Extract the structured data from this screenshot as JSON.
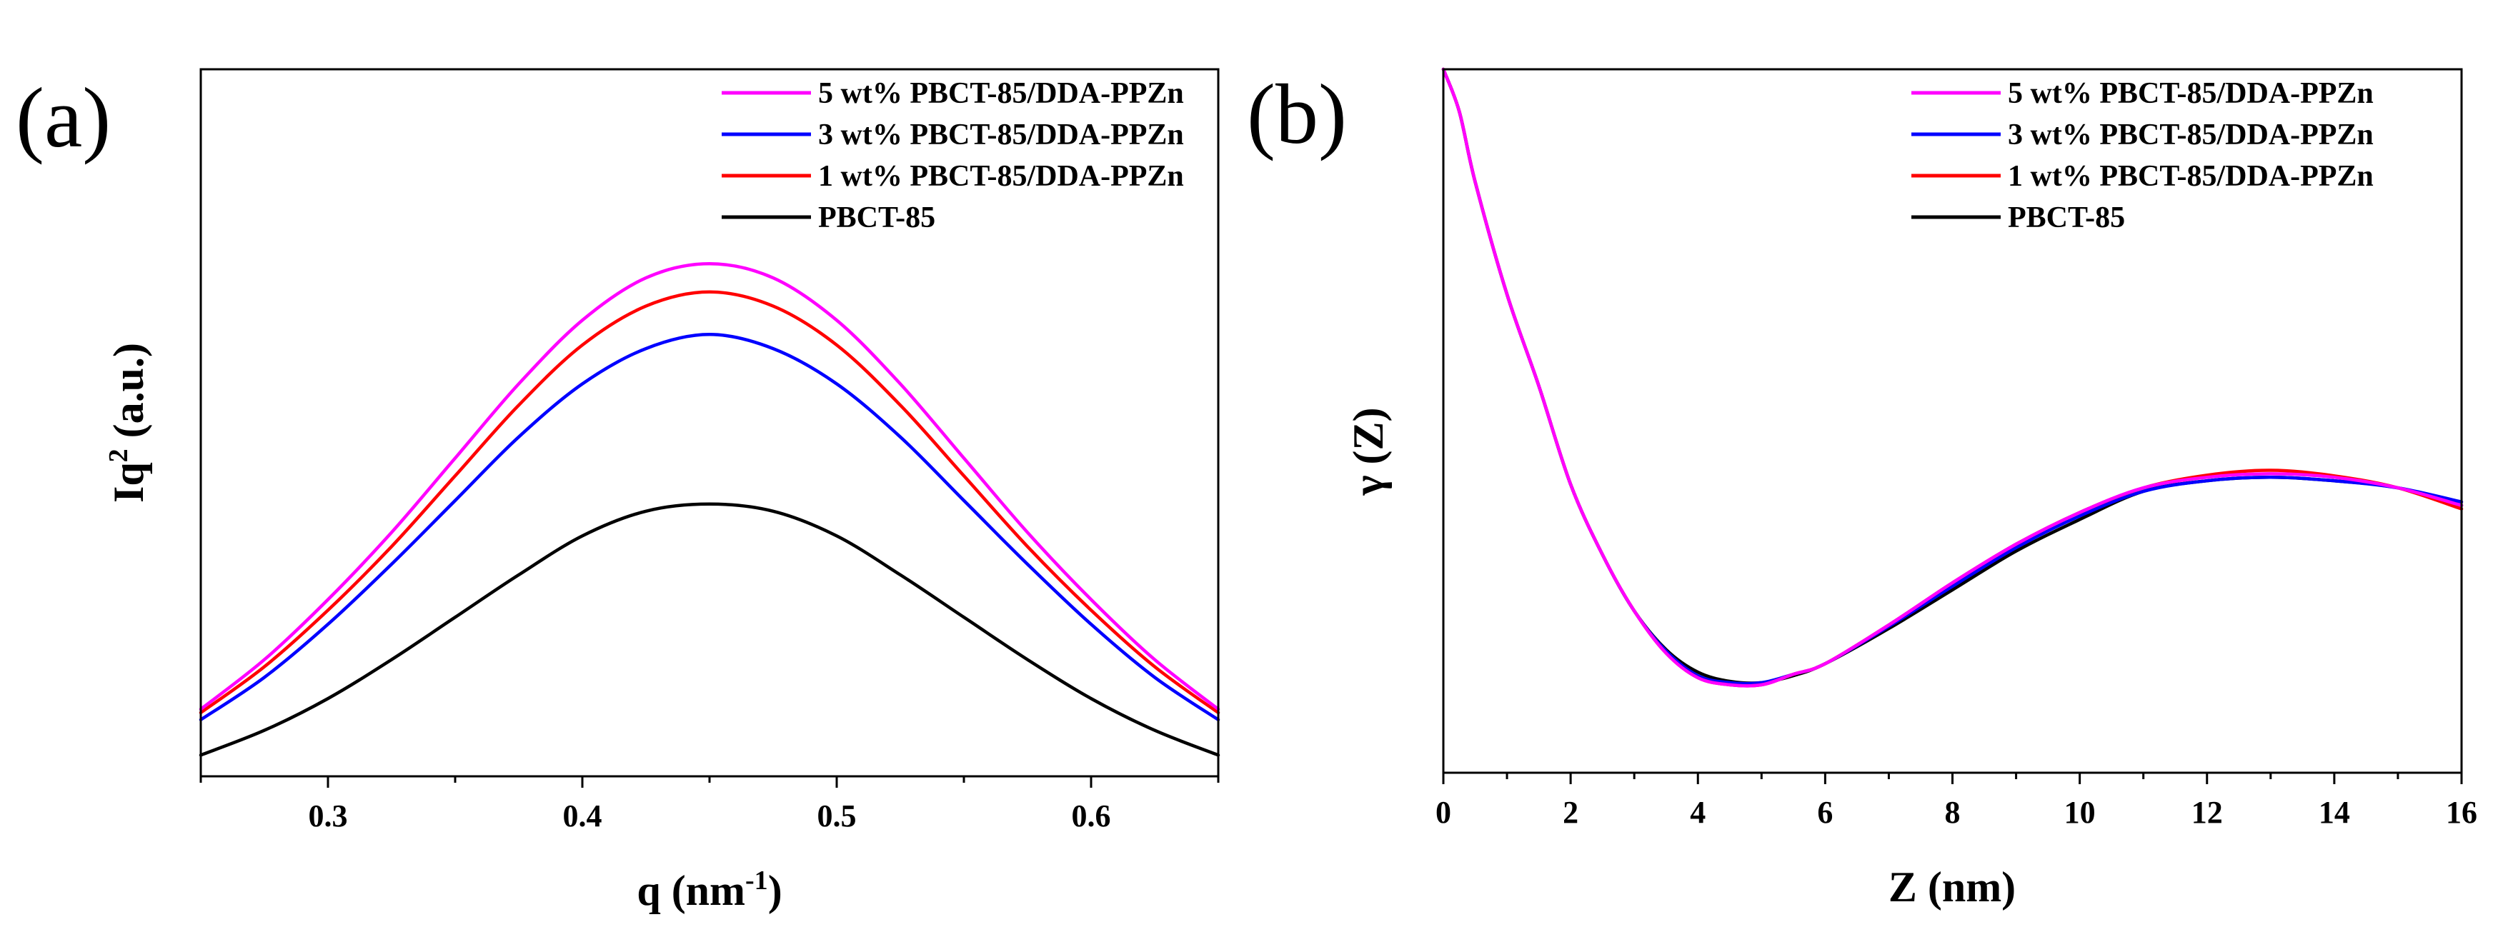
{
  "chart_data": [
    {
      "type": "line",
      "panel_label": "(a)",
      "xlabel": "q (nm",
      "xlabel_sup": "-1",
      "xlabel_end": ")",
      "ylabel": "Iq",
      "ylabel_sup": "2",
      "ylabel_end": " (a.u.)",
      "xlim": [
        0.25,
        0.65
      ],
      "ylim": [
        0,
        100
      ],
      "xticks": [
        0.3,
        0.4,
        0.5,
        0.6
      ],
      "xtick_labels": [
        "0.3",
        "0.4",
        "0.5",
        "0.6"
      ],
      "minor_xticks": [
        0.25,
        0.35,
        0.45,
        0.55,
        0.65
      ],
      "y_ticks_visible": false,
      "legend_position": "top-right",
      "series": [
        {
          "name": "5 wt% PBCT-85/DDA-PPZn",
          "color": "#ff00ff",
          "x": [
            0.25,
            0.275,
            0.3,
            0.325,
            0.35,
            0.375,
            0.4,
            0.425,
            0.45,
            0.475,
            0.5,
            0.525,
            0.55,
            0.575,
            0.6,
            0.625,
            0.65
          ],
          "y": [
            9.5,
            16.5,
            25,
            34.5,
            45,
            55.5,
            64.5,
            70.5,
            72.5,
            70.5,
            64.5,
            55.5,
            45,
            34.5,
            25,
            16.5,
            9.5
          ]
        },
        {
          "name": "3 wt% PBCT-85/DDA-PPZn",
          "color": "#0000ff",
          "x": [
            0.25,
            0.275,
            0.3,
            0.325,
            0.35,
            0.375,
            0.4,
            0.425,
            0.45,
            0.475,
            0.5,
            0.525,
            0.55,
            0.575,
            0.6,
            0.625,
            0.65
          ],
          "y": [
            8,
            14,
            21.5,
            30,
            39,
            48,
            55.5,
            60.5,
            62.5,
            60.5,
            55.5,
            48,
            39,
            30,
            21.5,
            14,
            8
          ]
        },
        {
          "name": "1 wt% PBCT-85/DDA-PPZn",
          "color": "#ff0000",
          "x": [
            0.25,
            0.275,
            0.3,
            0.325,
            0.35,
            0.375,
            0.4,
            0.425,
            0.45,
            0.475,
            0.5,
            0.525,
            0.55,
            0.575,
            0.6,
            0.625,
            0.65
          ],
          "y": [
            9,
            15.5,
            23.5,
            32.5,
            42.5,
            52.5,
            61,
            66.5,
            68.5,
            66.5,
            61,
            52.5,
            42.5,
            32.5,
            23.5,
            15.5,
            9
          ]
        },
        {
          "name": "PBCT-85",
          "color": "#000000",
          "x": [
            0.25,
            0.275,
            0.3,
            0.325,
            0.35,
            0.375,
            0.4,
            0.425,
            0.45,
            0.475,
            0.5,
            0.525,
            0.55,
            0.575,
            0.6,
            0.625,
            0.65
          ],
          "y": [
            3,
            6.5,
            11,
            16.5,
            22.5,
            28.5,
            34,
            37.5,
            38.5,
            37.5,
            34,
            28.5,
            22.5,
            16.5,
            11,
            6.5,
            3
          ]
        }
      ]
    },
    {
      "type": "line",
      "panel_label": "(b)",
      "xlabel": "Z (nm)",
      "ylabel": "γ (Z)",
      "xlim": [
        0,
        16
      ],
      "ylim": [
        0,
        100
      ],
      "xticks": [
        0,
        2,
        4,
        6,
        8,
        10,
        12,
        14,
        16
      ],
      "xtick_labels": [
        "0",
        "2",
        "4",
        "6",
        "8",
        "10",
        "12",
        "14",
        "16"
      ],
      "minor_xticks": [
        1,
        3,
        5,
        7,
        9,
        11,
        13,
        15
      ],
      "y_ticks_visible": false,
      "legend_position": "top-right",
      "series": [
        {
          "name": "5 wt% PBCT-85/DDA-PPZn",
          "color": "#ff00ff",
          "x": [
            0,
            0.25,
            0.5,
            1,
            1.5,
            2,
            2.5,
            3,
            3.5,
            4,
            4.5,
            5,
            5.5,
            6,
            7,
            8,
            9,
            10,
            11,
            12,
            13,
            14,
            15,
            16
          ],
          "y": [
            100,
            94,
            84,
            68,
            55,
            41,
            31,
            23,
            17,
            13.5,
            12.5,
            12.5,
            14,
            15.5,
            21,
            27,
            32.5,
            37,
            40.5,
            42,
            42.5,
            42,
            40.5,
            38
          ]
        },
        {
          "name": "3 wt% PBCT-85/DDA-PPZn",
          "color": "#0000ff",
          "x": [
            0,
            0.25,
            0.5,
            1,
            1.5,
            2,
            2.5,
            3,
            3.5,
            4,
            4.5,
            5,
            5.5,
            6,
            7,
            8,
            9,
            10,
            11,
            12,
            13,
            14,
            15,
            16
          ],
          "y": [
            100,
            94,
            84,
            68,
            55,
            41,
            31,
            23,
            17.3,
            13.8,
            12.8,
            12.8,
            14,
            15.5,
            20.8,
            26.5,
            32,
            36.5,
            40,
            41.5,
            42,
            41.5,
            40.5,
            38.5
          ]
        },
        {
          "name": "1 wt% PBCT-85/DDA-PPZn",
          "color": "#ff0000",
          "x": [
            0,
            0.25,
            0.5,
            1,
            1.5,
            2,
            2.5,
            3,
            3.5,
            4,
            4.5,
            5,
            5.5,
            6,
            7,
            8,
            9,
            10,
            11,
            12,
            13,
            14,
            15,
            16
          ],
          "y": [
            100,
            94,
            84,
            68,
            55,
            41,
            31,
            23,
            17,
            13.5,
            12.5,
            12.5,
            14,
            15.5,
            21,
            27,
            32.5,
            37,
            40.5,
            42.3,
            43,
            42.2,
            40.5,
            37.5
          ]
        },
        {
          "name": "PBCT-85",
          "color": "#000000",
          "x": [
            0,
            0.25,
            0.5,
            1,
            1.5,
            2,
            2.5,
            3,
            3.5,
            4,
            4.5,
            5,
            5.5,
            6,
            7,
            8,
            9,
            10,
            11,
            12,
            13,
            14,
            15,
            16
          ],
          "y": [
            100,
            94,
            84,
            68,
            55,
            41,
            31,
            23,
            17.5,
            14.3,
            13,
            12.8,
            13.8,
            15.5,
            20.5,
            26,
            31.5,
            36,
            40,
            41.5,
            42,
            41.5,
            40.5,
            38
          ]
        }
      ]
    }
  ]
}
